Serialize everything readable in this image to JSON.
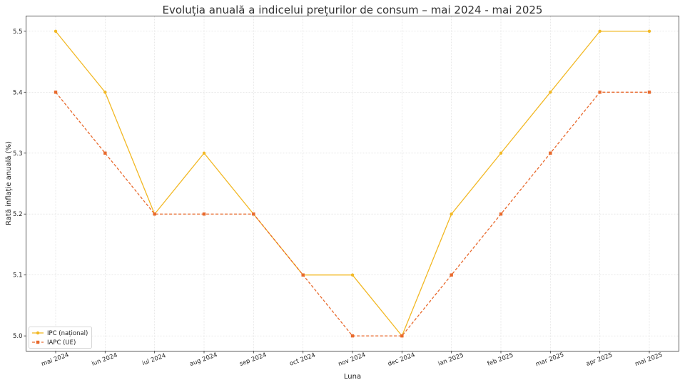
{
  "chart_data": {
    "type": "line",
    "title": "Evoluția anuală a indicelui prețurilor de consum – mai 2024 - mai 2025",
    "xlabel": "Luna",
    "ylabel": "Rată inflație anuală (%)",
    "categories": [
      "mai 2024",
      "iun 2024",
      "iul 2024",
      "aug 2024",
      "sep 2024",
      "oct 2024",
      "nov 2024",
      "dec 2024",
      "ian 2025",
      "feb 2025",
      "mar 2025",
      "apr 2025",
      "mai 2025"
    ],
    "ylim": [
      4.975,
      5.525
    ],
    "yticks": [
      5.0,
      5.1,
      5.2,
      5.3,
      5.4,
      5.5
    ],
    "grid": true,
    "legend_position": "bottom-left",
    "series": [
      {
        "name": "IPC (național)",
        "color": "#f2b824",
        "line_style": "solid",
        "marker": "circle",
        "values": [
          5.5,
          5.4,
          5.2,
          5.3,
          5.2,
          5.1,
          5.1,
          5.0,
          5.2,
          5.3,
          5.4,
          5.5,
          5.5
        ]
      },
      {
        "name": "IAPC (UE)",
        "color": "#e8692c",
        "line_style": "dashed",
        "marker": "square",
        "values": [
          5.4,
          5.3,
          5.2,
          5.2,
          5.2,
          5.1,
          5.0,
          5.0,
          5.1,
          5.2,
          5.3,
          5.4,
          5.4
        ]
      }
    ]
  }
}
